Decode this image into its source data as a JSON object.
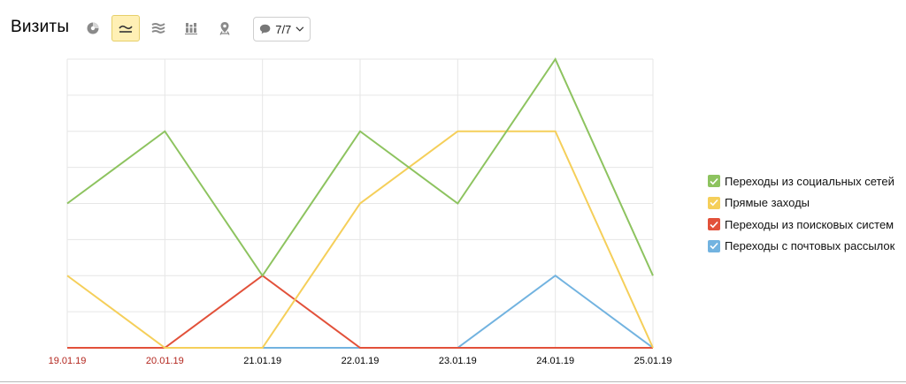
{
  "header": {
    "title": "Визиты",
    "notes_label": "7/7",
    "buttons": [
      {
        "name": "pie-chart-button",
        "icon": "pie-chart-icon",
        "active": false
      },
      {
        "name": "line-chart-button",
        "icon": "line-chart-icon",
        "active": true
      },
      {
        "name": "area-chart-button",
        "icon": "stacked-area-icon",
        "active": false
      },
      {
        "name": "bar-chart-button",
        "icon": "stacked-bar-icon",
        "active": false
      },
      {
        "name": "map-button",
        "icon": "map-pin-icon",
        "active": false
      }
    ]
  },
  "colors": {
    "grid": "#e6e6e6",
    "weekend_tick": "#b3261e",
    "weekday_tick": "#000000",
    "active_button_bg": "#fff0b5"
  },
  "chart_data": {
    "type": "line",
    "title": "",
    "xlabel": "",
    "ylabel": "",
    "categories": [
      "19.01.19",
      "20.01.19",
      "21.01.19",
      "22.01.19",
      "23.01.19",
      "24.01.19",
      "25.01.19"
    ],
    "weekend": [
      true,
      true,
      false,
      false,
      false,
      false,
      false
    ],
    "ylim": [
      0,
      8
    ],
    "yticks_visible": false,
    "grid": true,
    "legend_position": "right",
    "series": [
      {
        "name": "Переходы из социальных сетей",
        "color": "#8dc35f",
        "values": [
          4,
          6,
          2,
          6,
          4,
          8,
          2
        ]
      },
      {
        "name": "Прямые заходы",
        "color": "#f5cf5a",
        "values": [
          2,
          0,
          0,
          4,
          6,
          6,
          0
        ]
      },
      {
        "name": "Переходы из поисковых систем",
        "color": "#e2513a",
        "values": [
          0,
          0,
          2,
          0,
          0,
          0,
          0
        ]
      },
      {
        "name": "Переходы с почтовых рассылок",
        "color": "#72b3e0",
        "values": [
          0,
          0,
          0,
          0,
          0,
          2,
          0
        ]
      }
    ]
  }
}
